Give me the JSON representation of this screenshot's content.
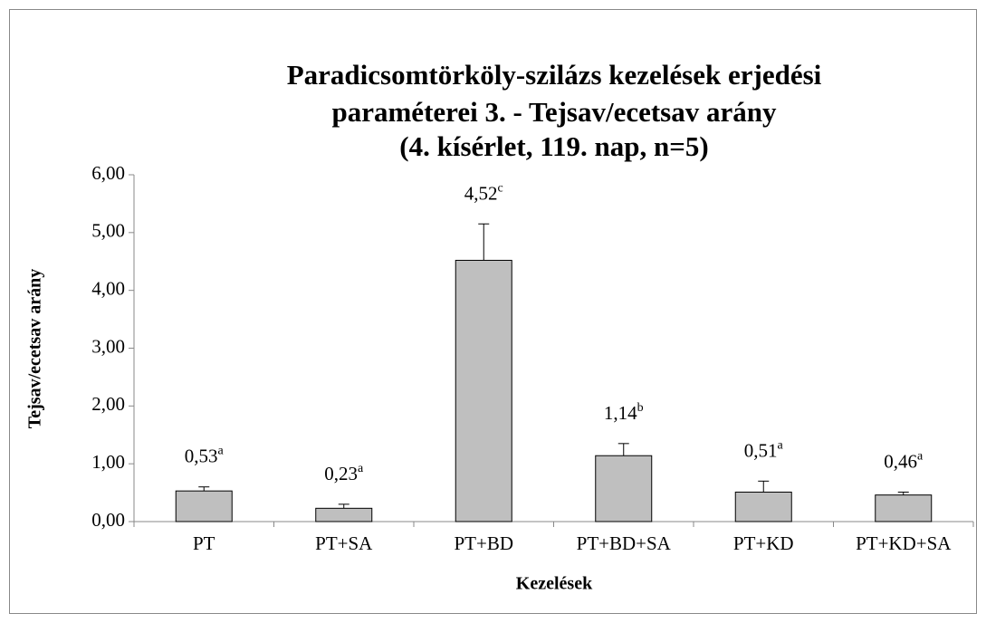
{
  "chart_data": {
    "type": "bar",
    "title": [
      "Paradicsomtörköly-szilázs kezelések erjedési",
      "paraméterei 3. - Tejsav/ecetsav arány",
      "(4. kísérlet, 119. nap, n=5)"
    ],
    "x_label": "Kezelések",
    "y_label": "Tejsav/ecetsav arány",
    "categories": [
      "PT",
      "PT+SA",
      "PT+BD",
      "PT+BD+SA",
      "PT+KD",
      "PT+KD+SA"
    ],
    "values": [
      0.53,
      0.23,
      4.52,
      1.14,
      0.51,
      0.46
    ],
    "errors": [
      0.07,
      0.07,
      0.63,
      0.21,
      0.19,
      0.05
    ],
    "value_labels": [
      "0,53",
      "0,23",
      "4,52",
      "1,14",
      "0,51",
      "0,46"
    ],
    "significance": [
      "a",
      "a",
      "c",
      "b",
      "a",
      "a"
    ],
    "color": "#bfbfbf",
    "ylim": [
      0,
      6
    ],
    "yticks": [
      {
        "value": 0,
        "label": "0,00"
      },
      {
        "value": 1,
        "label": "1,00"
      },
      {
        "value": 2,
        "label": "2,00"
      },
      {
        "value": 3,
        "label": "3,00"
      },
      {
        "value": 4,
        "label": "4,00"
      },
      {
        "value": 5,
        "label": "5,00"
      },
      {
        "value": 6,
        "label": "6,00"
      }
    ],
    "grid": false
  }
}
